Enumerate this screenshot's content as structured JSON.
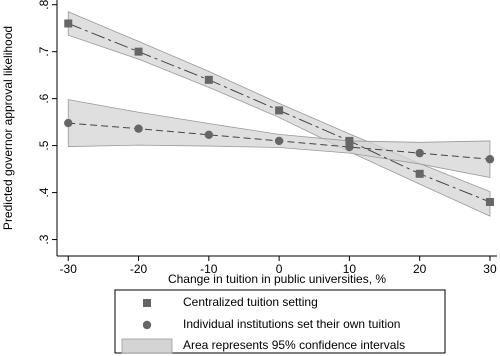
{
  "chart_data": {
    "type": "line",
    "y_label": "Predicted governor approval likelihood",
    "x_label": "Change in tuition in public universities, %",
    "x": [
      -30,
      -20,
      -10,
      0,
      10,
      20,
      30
    ],
    "series": [
      {
        "name": "Centralized tuition setting",
        "color": "#666666",
        "marker": "square",
        "dash": "14,4,3,4",
        "values": [
          0.76,
          0.7,
          0.64,
          0.575,
          0.51,
          0.44,
          0.38
        ],
        "upper": [
          0.785,
          0.722,
          0.658,
          0.59,
          0.525,
          0.462,
          0.402
        ],
        "lower": [
          0.735,
          0.684,
          0.624,
          0.56,
          0.487,
          0.418,
          0.35
        ]
      },
      {
        "name": "Individual institutions set their own tuition",
        "color": "#666666",
        "marker": "circle",
        "dash": "7,4",
        "values": [
          0.548,
          0.536,
          0.523,
          0.51,
          0.497,
          0.484,
          0.471
        ],
        "upper": [
          0.598,
          0.571,
          0.547,
          0.524,
          0.51,
          0.507,
          0.51
        ],
        "lower": [
          0.498,
          0.501,
          0.499,
          0.496,
          0.484,
          0.461,
          0.432
        ]
      }
    ],
    "ci_label": "Area represents 95% confidence intervals",
    "band_color": "#d4d4d4",
    "xlim": [
      -31.6,
      31
    ],
    "ylim": [
      0.265,
      0.81
    ],
    "xticks": [
      -30,
      -20,
      -10,
      0,
      10,
      20,
      30
    ],
    "yticks": [
      {
        "value": 0.3,
        "label": ".3"
      },
      {
        "value": 0.4,
        "label": ".4"
      },
      {
        "value": 0.5,
        "label": ".5"
      },
      {
        "value": 0.6,
        "label": ".6"
      },
      {
        "value": 0.7,
        "label": ".7"
      },
      {
        "value": 0.8,
        "label": ".8"
      }
    ]
  }
}
